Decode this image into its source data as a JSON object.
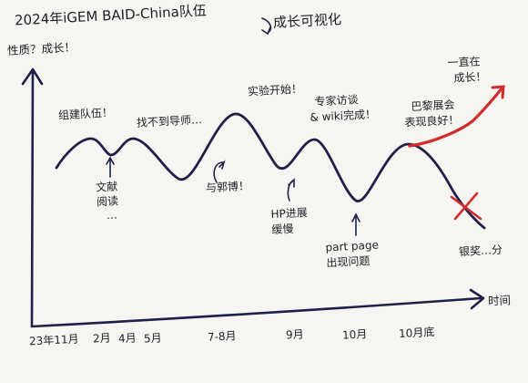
{
  "title": "2024年iGEM BAID-China队伍",
  "title_suffix": "成长可视化",
  "y_axis_label": "性质？成长！",
  "x_axis_label": "时间",
  "events": {
    "team_building": "组建队伍！",
    "literature": "文献",
    "literature_2": "阅读",
    "literature_3": "…",
    "mentor": "找不到导师…",
    "guo": "与郭博！",
    "experiment": "实验开始！",
    "hp_slow": "HP进展",
    "hp_slow_2": "缓慢",
    "expert": "专家访谈",
    "expert_2": "& wiki完成！",
    "part_page": "part page",
    "part_page_2": "出现问题",
    "paris": "巴黎展会",
    "paris_2": "表现良好！",
    "growing": "一直在",
    "growing_2": "成长！",
    "silver": "银奖…分"
  },
  "x_ticks": [
    "23年11月",
    "2月",
    "4月",
    "5月",
    "7-8月",
    "9月",
    "10月",
    "10月底"
  ],
  "colors": {
    "ink": "#20204a",
    "red": "#d22b2b",
    "paper": "#f6f5f2"
  }
}
